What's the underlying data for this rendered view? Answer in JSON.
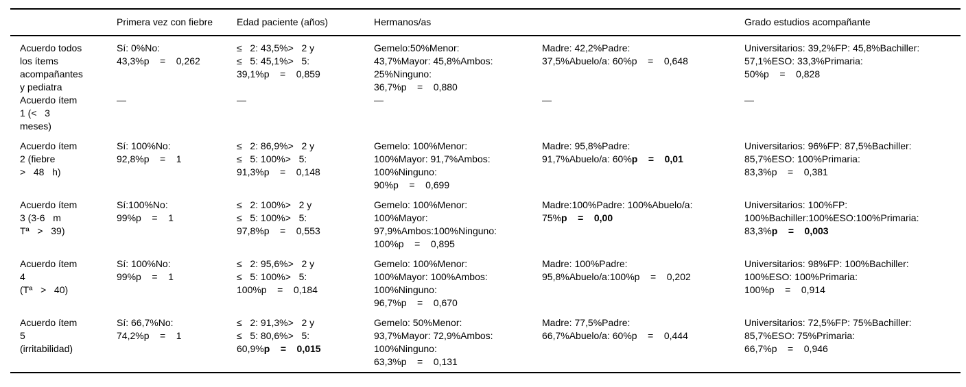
{
  "page": {
    "background_color": "#ffffff",
    "text_color": "#000000",
    "rule_color": "#000000"
  },
  "table": {
    "headers": [
      "",
      "Primera vez con fiebre",
      "Edad paciente (años)",
      "Hermanos/as",
      "",
      "Grado estudios acompañante"
    ],
    "rows": [
      {
        "cells": [
          {
            "lines": [
              "Acuerdo todos",
              "los ítems",
              "acompañantes",
              "y pediatra"
            ]
          },
          {
            "lines": [
              "Sí: 0%No:",
              "43,3%p    =    0,262"
            ]
          },
          {
            "lines": [
              "≤   2: 43,5%>   2 y",
              "≤   5: 45,1%>   5:",
              "39,1%p    =    0,859"
            ]
          },
          {
            "lines": [
              "Gemelo:50%Menor:",
              "43,7%Mayor: 45,8%Ambos:",
              "25%Ninguno:",
              "36,7%p    =    0,880"
            ]
          },
          {
            "lines": [
              "Madre: 42,2%Padre:",
              "37,5%Abuelo/a: 60%p    =    0,648"
            ]
          },
          {
            "lines": [
              "Universitarios: 39,2%FP: 45,8%Bachiller:",
              "57,1%ESO: 33,3%Primaria:",
              "50%p    =    0,828"
            ]
          }
        ]
      },
      {
        "cells": [
          {
            "lines": [
              "Acuerdo ítem",
              "1 (<   3",
              "meses)"
            ]
          },
          {
            "lines": [
              "—"
            ]
          },
          {
            "lines": [
              "—"
            ]
          },
          {
            "lines": [
              "—"
            ]
          },
          {
            "lines": [
              "—"
            ]
          },
          {
            "lines": [
              "—"
            ]
          }
        ]
      },
      {
        "cells": [
          {
            "lines": [
              "Acuerdo ítem",
              "2 (fiebre",
              ">   48   h)"
            ]
          },
          {
            "lines": [
              "Sí: 100%No:",
              "92,8%p    =    1"
            ]
          },
          {
            "lines": [
              "≤   2: 86,9%>   2 y",
              "≤   5: 100%>   5:",
              "91,3%p    =    0,148"
            ]
          },
          {
            "lines": [
              "Gemelo: 100%Menor:",
              "100%Mayor: 91,7%Ambos:",
              "100%Ninguno:",
              "90%p    =    0,699"
            ]
          },
          {
            "lines": [
              "Madre: 95,8%Padre:",
              "91,7%Abuelo/a: 60%p    =    0,01"
            ],
            "bold": "p    =    0,01"
          },
          {
            "lines": [
              "Universitarios: 96%FP: 87,5%Bachiller:",
              "85,7%ESO: 100%Primaria:",
              "83,3%p    =    0,381"
            ]
          }
        ]
      },
      {
        "cells": [
          {
            "lines": [
              "Acuerdo ítem",
              "3 (3-6   m",
              "Tª   >   39)"
            ]
          },
          {
            "lines": [
              "Sí:100%No:",
              "99%p    =    1"
            ]
          },
          {
            "lines": [
              "≤   2: 100%>   2 y",
              "≤   5: 100%>   5:",
              "97,8%p    =    0,553"
            ]
          },
          {
            "lines": [
              "Gemelo: 100%Menor:",
              "100%Mayor:",
              "97,9%Ambos:100%Ninguno:",
              "100%p    =    0,895"
            ]
          },
          {
            "lines": [
              "Madre:100%Padre: 100%Abuelo/a:",
              "75%p    =    0,00"
            ],
            "bold": "p    =    0,00"
          },
          {
            "lines": [
              "Universitarios: 100%FP:",
              "100%Bachiller:100%ESO:100%Primaria:",
              "83,3%p    =    0,003"
            ],
            "bold": "p    =    0,003"
          }
        ]
      },
      {
        "cells": [
          {
            "lines": [
              "Acuerdo ítem",
              "4",
              "(Tª   >   40)"
            ]
          },
          {
            "lines": [
              "Sí: 100%No:",
              "99%p    =    1"
            ]
          },
          {
            "lines": [
              "≤   2: 95,6%>   2 y",
              "≤   5: 100%>   5:",
              "100%p    =    0,184"
            ]
          },
          {
            "lines": [
              "Gemelo: 100%Menor:",
              "100%Mayor: 100%Ambos:",
              "100%Ninguno:",
              "96,7%p    =    0,670"
            ]
          },
          {
            "lines": [
              "Madre: 100%Padre:",
              "95,8%Abuelo/a:100%p    =    0,202"
            ]
          },
          {
            "lines": [
              "Universitarios: 98%FP: 100%Bachiller:",
              "100%ESO: 100%Primaria:",
              "100%p    =    0,914"
            ]
          }
        ]
      },
      {
        "cells": [
          {
            "lines": [
              "Acuerdo ítem",
              "5",
              "(irritabilidad)"
            ]
          },
          {
            "lines": [
              "Sí: 66,7%No:",
              "74,2%p    =    1"
            ]
          },
          {
            "lines": [
              "≤   2: 91,3%>   2 y",
              "≤   5: 80,6%>   5:",
              "60,9%p    =    0,015"
            ],
            "bold": "p    =    0,015"
          },
          {
            "lines": [
              "Gemelo: 50%Menor:",
              "93,7%Mayor: 72,9%Ambos:",
              "100%Ninguno:",
              "63,3%p    =    0,131"
            ]
          },
          {
            "lines": [
              "Madre: 77,5%Padre:",
              "66,7%Abuelo/a: 60%p    =    0,444"
            ]
          },
          {
            "lines": [
              "Universitarios: 72,5%FP: 75%Bachiller:",
              "85,7%ESO: 75%Primaria:",
              "66,7%p    =    0,946"
            ]
          }
        ]
      }
    ]
  }
}
